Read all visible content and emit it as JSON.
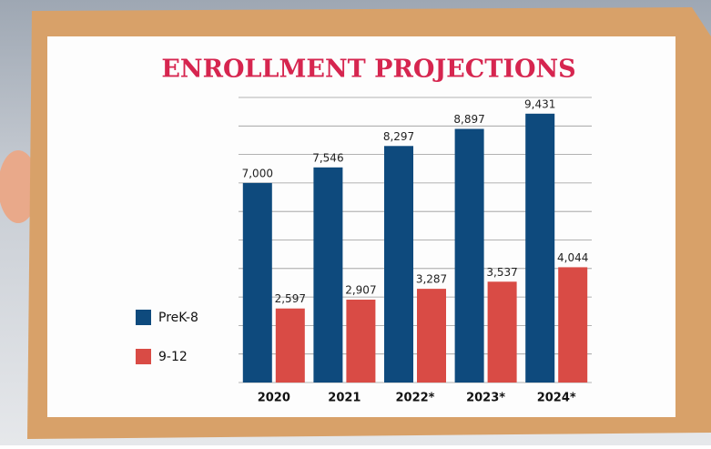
{
  "chart_data": {
    "type": "bar",
    "title": "ENROLLMENT PROJECTIONS",
    "categories": [
      "2020",
      "2021",
      "2022*",
      "2023*",
      "2024*"
    ],
    "series": [
      {
        "name": "PreK-8",
        "color": "#0e4a7d",
        "values": [
          7000,
          7546,
          8297,
          8897,
          9431
        ],
        "value_labels": [
          "7,000",
          "7,546",
          "8,297",
          "8,897",
          "9,431"
        ]
      },
      {
        "name": "9-12",
        "color": "#d94b45",
        "values": [
          2597,
          2907,
          3287,
          3537,
          4044
        ],
        "value_labels": [
          "2,597",
          "2,907",
          "3,287",
          "3,537",
          "4,044"
        ]
      }
    ],
    "ylim": [
      0,
      10000
    ],
    "yticks": [
      0,
      1000,
      2000,
      3000,
      4000,
      5000,
      6000,
      7000,
      8000,
      9000,
      10000
    ],
    "grid": true
  }
}
